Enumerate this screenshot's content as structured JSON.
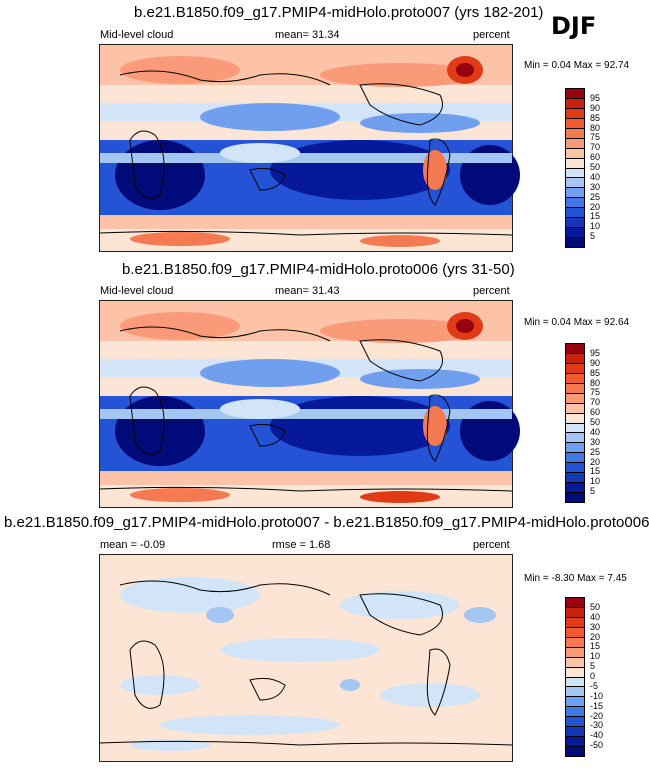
{
  "season": "DJF",
  "panels": [
    {
      "title": "b.e21.B1850.f09_g17.PMIP4-midHolo.proto007 (yrs 182-201)",
      "left_label": "Mid-level cloud",
      "center_label": "mean=  31.34",
      "right_label": "percent",
      "minmax": "Min =   0.04 Max =  92.74",
      "colorbar": {
        "labels": [
          "95",
          "90",
          "85",
          "80",
          "75",
          "70",
          "60",
          "50",
          "40",
          "30",
          "25",
          "20",
          "15",
          "10",
          "5"
        ],
        "colors": [
          "#99000d",
          "#c8200e",
          "#e03a16",
          "#f05a2e",
          "#f57a52",
          "#f99a78",
          "#fcc3a8",
          "#fde5d5",
          "#d2e4f7",
          "#a4c6f2",
          "#6f9fee",
          "#3f79e6",
          "#2453d6",
          "#1436b8",
          "#05199a",
          "#000a78"
        ]
      },
      "style": "cloud"
    },
    {
      "title": "b.e21.B1850.f09_g17.PMIP4-midHolo.proto006 (yrs 31-50)",
      "left_label": "Mid-level cloud",
      "center_label": "mean=  31.43",
      "right_label": "percent",
      "minmax": "Min =   0.04 Max =  92.64",
      "colorbar": {
        "labels": [
          "95",
          "90",
          "85",
          "80",
          "75",
          "70",
          "60",
          "50",
          "40",
          "30",
          "25",
          "20",
          "15",
          "10",
          "5"
        ],
        "colors": [
          "#99000d",
          "#c8200e",
          "#e03a16",
          "#f05a2e",
          "#f57a52",
          "#f99a78",
          "#fcc3a8",
          "#fde5d5",
          "#d2e4f7",
          "#a4c6f2",
          "#6f9fee",
          "#3f79e6",
          "#2453d6",
          "#1436b8",
          "#05199a",
          "#000a78"
        ]
      },
      "style": "cloud"
    },
    {
      "title": "b.e21.B1850.f09_g17.PMIP4-midHolo.proto007 - b.e21.B1850.f09_g17.PMIP4-midHolo.proto006",
      "left_label": "mean =  -0.09",
      "center_label": "rmse =   1.68",
      "right_label": "percent",
      "minmax": "Min =  -8.30 Max =   7.45",
      "colorbar": {
        "labels": [
          "50",
          "40",
          "30",
          "20",
          "15",
          "10",
          "5",
          "0",
          "-5",
          "-10",
          "-15",
          "-20",
          "-30",
          "-40",
          "-50"
        ],
        "colors": [
          "#99000d",
          "#c8200e",
          "#e03a16",
          "#f05a2e",
          "#f57a52",
          "#f99a78",
          "#fcc3a8",
          "#fde5d5",
          "#d2e4f7",
          "#a4c6f2",
          "#6f9fee",
          "#3f79e6",
          "#2453d6",
          "#1436b8",
          "#05199a",
          "#000a78"
        ]
      },
      "style": "diff"
    }
  ]
}
